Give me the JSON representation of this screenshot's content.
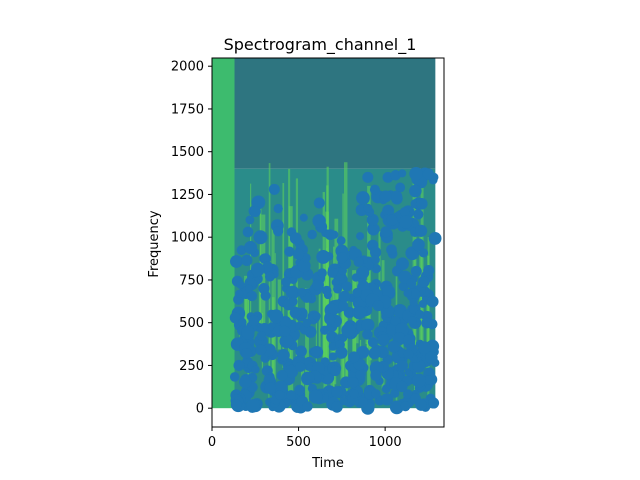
{
  "chart_data": {
    "type": "heatmap",
    "title": "Spectrogram_channel_1",
    "xlabel": "Time",
    "ylabel": "Frequency",
    "xlim": [
      0,
      1340
    ],
    "ylim": [
      -110,
      2048
    ],
    "x_ticks": [
      0,
      500,
      1000
    ],
    "y_ticks": [
      0,
      250,
      500,
      750,
      1000,
      1250,
      1500,
      1750,
      2000
    ],
    "grid": false,
    "legend": "none",
    "colors": {
      "spectrogram_high": "#2e7580",
      "spectrogram_mid": "#2a8c8a",
      "spectrogram_low_band": "#3dbb6e",
      "spectrogram_bright": "#5ed55a",
      "points": "#1f77b4",
      "axes": "#000000"
    },
    "spectrogram": {
      "x_range": [
        0,
        1290
      ],
      "y_range": [
        0,
        2048
      ],
      "silent_region_x": [
        0,
        130
      ],
      "noise_floor_y": 1400
    },
    "scatter": {
      "marker": "circle",
      "x_range": [
        130,
        1290
      ],
      "y_range": [
        0,
        1380
      ],
      "points_sample": [
        {
          "x": 140,
          "y": 20
        },
        {
          "x": 200,
          "y": 320
        },
        {
          "x": 250,
          "y": 1150
        },
        {
          "x": 300,
          "y": 700
        },
        {
          "x": 360,
          "y": 1280
        },
        {
          "x": 420,
          "y": 450
        },
        {
          "x": 500,
          "y": 900
        },
        {
          "x": 560,
          "y": 180
        },
        {
          "x": 620,
          "y": 1200
        },
        {
          "x": 680,
          "y": 520
        },
        {
          "x": 750,
          "y": 880
        },
        {
          "x": 820,
          "y": 300
        },
        {
          "x": 900,
          "y": 1350
        },
        {
          "x": 960,
          "y": 600
        },
        {
          "x": 1040,
          "y": 1100
        },
        {
          "x": 1100,
          "y": 250
        },
        {
          "x": 1180,
          "y": 800
        },
        {
          "x": 1250,
          "y": 1370
        },
        {
          "x": 1280,
          "y": 30
        }
      ]
    }
  }
}
